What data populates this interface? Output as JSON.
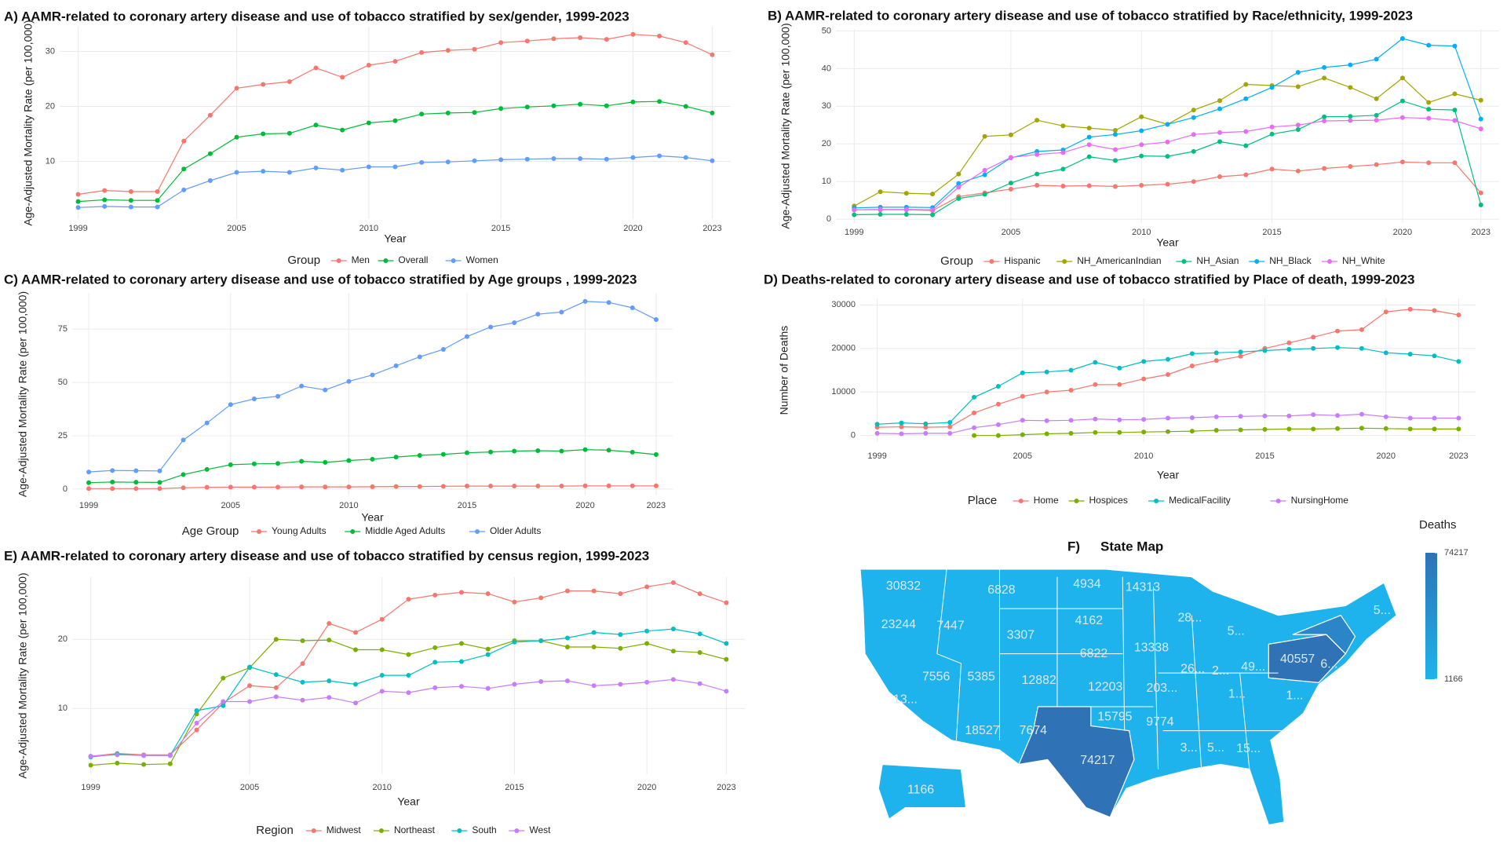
{
  "chart_data": [
    {
      "type": "line",
      "title": "A) AAMR-related to coronary artery disease and use of tobacco stratified by sex/gender, 1999-2023",
      "xlabel": "Year",
      "ylabel": "Age-Adjusted Mortality Rate (per 100,000)",
      "legend_title": "Group",
      "legend": "bottom",
      "grid": true,
      "x": [
        1999,
        2000,
        2001,
        2002,
        2003,
        2004,
        2005,
        2006,
        2007,
        2008,
        2009,
        2010,
        2011,
        2012,
        2013,
        2014,
        2015,
        2016,
        2017,
        2018,
        2019,
        2020,
        2021,
        2022,
        2023
      ],
      "xlim": [
        1998.3,
        2023.7
      ],
      "xticks": [
        1999,
        2005,
        2010,
        2015,
        2020,
        2023
      ],
      "ylim": [
        -0.5,
        34.5
      ],
      "yticks": [
        10,
        20,
        30
      ],
      "series": [
        {
          "name": "Men",
          "color": "#F8766D",
          "values": [
            4.0,
            4.7,
            4.5,
            4.5,
            13.7,
            18.4,
            23.3,
            24.0,
            24.5,
            27.0,
            25.3,
            27.5,
            28.2,
            29.8,
            30.2,
            30.4,
            31.6,
            31.9,
            32.3,
            32.5,
            32.2,
            33.1,
            32.8,
            31.6,
            29.4
          ]
        },
        {
          "name": "Overall",
          "color": "#00BA38",
          "values": [
            2.7,
            3.0,
            2.9,
            2.9,
            8.6,
            11.4,
            14.4,
            15.0,
            15.1,
            16.6,
            15.7,
            17.0,
            17.4,
            18.6,
            18.8,
            18.9,
            19.6,
            19.9,
            20.1,
            20.4,
            20.1,
            20.8,
            20.9,
            20.0,
            18.8
          ]
        },
        {
          "name": "Women",
          "color": "#619CFF",
          "values": [
            1.6,
            1.8,
            1.7,
            1.7,
            4.8,
            6.5,
            8.0,
            8.2,
            8.0,
            8.8,
            8.4,
            9.0,
            9.0,
            9.8,
            9.9,
            10.1,
            10.3,
            10.4,
            10.5,
            10.5,
            10.4,
            10.7,
            11.0,
            10.7,
            10.1
          ]
        }
      ]
    },
    {
      "type": "line",
      "title": "B) AAMR-related to coronary artery disease and use of tobacco stratified by Race/ethnicity, 1999-2023",
      "xlabel": "Year",
      "ylabel": "Age-Adjusted Mortality Rate (per 100,000)",
      "legend_title": "Group",
      "legend": "bottom",
      "grid": true,
      "x": [
        1999,
        2000,
        2001,
        2002,
        2003,
        2004,
        2005,
        2006,
        2007,
        2008,
        2009,
        2010,
        2011,
        2012,
        2013,
        2014,
        2015,
        2016,
        2017,
        2018,
        2019,
        2020,
        2021,
        2022,
        2023
      ],
      "xlim": [
        1998.3,
        2023.7
      ],
      "xticks": [
        1999,
        2005,
        2010,
        2015,
        2020,
        2023
      ],
      "ylim": [
        -1,
        50.5
      ],
      "yticks": [
        0,
        10,
        20,
        30,
        40,
        50
      ],
      "series": [
        {
          "name": "Hispanic",
          "color": "#F8766D",
          "values": [
            2.5,
            2.5,
            2.5,
            2.3,
            6.0,
            7.0,
            8.0,
            9.0,
            8.8,
            8.9,
            8.7,
            9.0,
            9.3,
            10.0,
            11.3,
            11.8,
            13.3,
            12.8,
            13.5,
            14.0,
            14.5,
            15.2,
            15.0,
            15.0,
            7.0
          ]
        },
        {
          "name": "NH_AmericanIndian",
          "color": "#A3A500",
          "values": [
            3.5,
            7.3,
            6.9,
            6.7,
            12.0,
            22.0,
            22.4,
            26.3,
            24.8,
            24.2,
            23.6,
            27.2,
            25.2,
            29.0,
            31.5,
            35.8,
            35.5,
            35.2,
            37.5,
            35.0,
            32.0,
            37.5,
            31.0,
            33.3,
            31.6
          ]
        },
        {
          "name": "NH_Asian",
          "color": "#00BF7D",
          "values": [
            1.2,
            1.3,
            1.3,
            1.2,
            5.5,
            6.6,
            9.6,
            12.0,
            13.3,
            16.6,
            15.6,
            16.8,
            16.7,
            18.0,
            20.6,
            19.5,
            22.6,
            23.8,
            27.2,
            27.3,
            27.6,
            31.4,
            29.2,
            29.0,
            3.8
          ]
        },
        {
          "name": "NH_Black",
          "color": "#00B0F6",
          "values": [
            3.0,
            3.2,
            3.2,
            3.1,
            9.5,
            11.8,
            16.3,
            18.0,
            18.4,
            21.8,
            22.5,
            23.5,
            25.2,
            27.0,
            29.3,
            32.0,
            35.0,
            39.0,
            40.3,
            41.0,
            42.5,
            48.0,
            46.2,
            46.0,
            26.6
          ]
        },
        {
          "name": "NH_White",
          "color": "#E76BF3",
          "values": [
            2.5,
            2.6,
            2.6,
            2.5,
            8.5,
            13.0,
            16.4,
            17.2,
            17.7,
            19.8,
            18.5,
            19.8,
            20.5,
            22.5,
            23.0,
            23.3,
            24.5,
            25.0,
            26.1,
            26.2,
            26.3,
            27.0,
            26.8,
            26.2,
            24.0
          ]
        }
      ]
    },
    {
      "type": "line",
      "title": "C)  AAMR-related to coronary artery disease and use of tobacco stratified by Age groups , 1999-2023",
      "xlabel": "Year",
      "ylabel": "Age-Adjusted Mortality Rate (per 100,000)",
      "legend_title": "Age Group",
      "legend": "bottom",
      "grid": true,
      "x": [
        1999,
        2000,
        2001,
        2002,
        2003,
        2004,
        2005,
        2006,
        2007,
        2008,
        2009,
        2010,
        2011,
        2012,
        2013,
        2014,
        2015,
        2016,
        2017,
        2018,
        2019,
        2020,
        2021,
        2022,
        2023
      ],
      "xlim": [
        1998.3,
        2023.7
      ],
      "xticks": [
        1999,
        2005,
        2010,
        2015,
        2020,
        2023
      ],
      "ylim": [
        -3,
        92
      ],
      "yticks": [
        0,
        25,
        50,
        75
      ],
      "series": [
        {
          "name": "Young Adults",
          "color": "#F8766D",
          "values": [
            0.2,
            0.2,
            0.2,
            0.2,
            0.6,
            0.8,
            0.9,
            0.9,
            0.9,
            1.0,
            1.0,
            1.0,
            1.1,
            1.2,
            1.2,
            1.3,
            1.4,
            1.4,
            1.4,
            1.4,
            1.4,
            1.5,
            1.5,
            1.5,
            1.5
          ]
        },
        {
          "name": "Middle Aged Adults",
          "color": "#00BA38",
          "values": [
            3.0,
            3.3,
            3.2,
            3.1,
            6.8,
            9.2,
            11.4,
            11.8,
            12.0,
            13.0,
            12.5,
            13.4,
            14.0,
            15.0,
            15.8,
            16.3,
            17.0,
            17.4,
            17.8,
            18.0,
            17.8,
            18.5,
            18.2,
            17.3,
            16.2
          ]
        },
        {
          "name": "Older Adults",
          "color": "#619CFF",
          "values": [
            8.0,
            8.7,
            8.6,
            8.5,
            23.0,
            31.0,
            39.6,
            42.3,
            43.5,
            48.3,
            46.5,
            50.5,
            53.5,
            57.8,
            62.0,
            65.5,
            71.5,
            76.0,
            78.0,
            82.0,
            83.0,
            88.0,
            87.5,
            85.0,
            79.5
          ]
        }
      ]
    },
    {
      "type": "line",
      "title": "D) Deaths-related to coronary artery disease and use of tobacco stratified by Place of death, 1999-2023",
      "xlabel": "Year",
      "ylabel": "Number of Deaths",
      "legend_title": "Place",
      "legend": "bottom",
      "grid": true,
      "x": [
        1999,
        2000,
        2001,
        2002,
        2003,
        2004,
        2005,
        2006,
        2007,
        2008,
        2009,
        2010,
        2011,
        2012,
        2013,
        2014,
        2015,
        2016,
        2017,
        2018,
        2019,
        2020,
        2021,
        2022,
        2023
      ],
      "xlim": [
        1998.3,
        2023.7
      ],
      "xticks": [
        1999,
        2005,
        2010,
        2015,
        2020,
        2023
      ],
      "ylim": [
        -1500,
        31500
      ],
      "yticks": [
        0,
        10000,
        20000,
        30000
      ],
      "series": [
        {
          "name": "Home",
          "color": "#F8766D",
          "values": [
            1900,
            2000,
            1900,
            2000,
            5200,
            7200,
            9000,
            10000,
            10400,
            11700,
            11700,
            13000,
            14000,
            16000,
            17200,
            18200,
            20000,
            21300,
            22600,
            24000,
            24300,
            28400,
            29000,
            28700,
            27700
          ]
        },
        {
          "name": "Hospices",
          "color": "#7CAE00",
          "values": [
            null,
            null,
            null,
            null,
            0,
            0,
            200,
            400,
            500,
            700,
            700,
            800,
            900,
            1000,
            1200,
            1300,
            1400,
            1500,
            1500,
            1600,
            1700,
            1600,
            1500,
            1500,
            1500
          ]
        },
        {
          "name": "MedicalFacility",
          "color": "#00BFC4",
          "values": [
            2600,
            2900,
            2700,
            3000,
            8800,
            11300,
            14400,
            14600,
            15000,
            16800,
            15500,
            17000,
            17500,
            18800,
            19000,
            19200,
            19500,
            19800,
            20000,
            20200,
            20000,
            19000,
            18700,
            18300,
            17000
          ]
        },
        {
          "name": "NursingHome",
          "color": "#C77CFF",
          "values": [
            500,
            400,
            500,
            500,
            1800,
            2500,
            3500,
            3400,
            3500,
            3800,
            3600,
            3700,
            4000,
            4100,
            4300,
            4400,
            4500,
            4500,
            4800,
            4600,
            4900,
            4300,
            4000,
            4000,
            4000
          ]
        }
      ]
    },
    {
      "type": "line",
      "title": "E) AAMR-related to coronary artery disease and use of tobacco stratified by census region, 1999-2023",
      "xlabel": "Year",
      "ylabel": "Age-Adjusted Mortality Rate (per 100,000)",
      "legend_title": "Region",
      "legend": "bottom",
      "grid": true,
      "x": [
        1999,
        2000,
        2001,
        2002,
        2003,
        2004,
        2005,
        2006,
        2007,
        2008,
        2009,
        2010,
        2011,
        2012,
        2013,
        2014,
        2015,
        2016,
        2017,
        2018,
        2019,
        2020,
        2021,
        2022,
        2023
      ],
      "xlim": [
        1998.3,
        2023.7
      ],
      "xticks": [
        1999,
        2005,
        2010,
        2015,
        2020,
        2023
      ],
      "ylim": [
        0.5,
        29
      ],
      "yticks": [
        10,
        20
      ],
      "series": [
        {
          "name": "Midwest",
          "color": "#F8766D",
          "values": [
            3.1,
            3.5,
            3.3,
            3.3,
            6.9,
            10.8,
            13.3,
            13.0,
            16.5,
            22.3,
            21.0,
            22.9,
            25.8,
            26.4,
            26.8,
            26.6,
            25.4,
            26.0,
            27.0,
            27.0,
            26.6,
            27.6,
            28.2,
            26.6,
            25.3
          ]
        },
        {
          "name": "Northeast",
          "color": "#7CAE00",
          "values": [
            1.8,
            2.1,
            1.9,
            2.0,
            9.2,
            14.4,
            15.9,
            20.0,
            19.8,
            19.9,
            18.5,
            18.5,
            17.8,
            18.8,
            19.4,
            18.6,
            19.8,
            19.8,
            18.9,
            18.9,
            18.7,
            19.4,
            18.3,
            18.1,
            17.1
          ]
        },
        {
          "name": "South",
          "color": "#00BFC4",
          "values": [
            3.0,
            3.4,
            3.2,
            3.2,
            9.7,
            10.4,
            16.0,
            14.9,
            13.8,
            14.0,
            13.5,
            14.8,
            14.8,
            16.7,
            16.8,
            17.8,
            19.6,
            19.8,
            20.2,
            21.0,
            20.7,
            21.2,
            21.5,
            20.8,
            19.4
          ]
        },
        {
          "name": "West",
          "color": "#C77CFF",
          "values": [
            3.1,
            3.3,
            3.2,
            3.2,
            7.9,
            11.0,
            11.0,
            11.7,
            11.2,
            11.6,
            10.8,
            12.5,
            12.3,
            13.0,
            13.2,
            12.9,
            13.5,
            13.9,
            14.0,
            13.3,
            13.5,
            13.8,
            14.2,
            13.6,
            12.5
          ]
        }
      ]
    },
    {
      "type": "map",
      "panel_label": "F)",
      "title": "State Map",
      "colorbar_title": "Deaths",
      "colorbar_ticks": [
        1166,
        74217
      ],
      "colorbar_colors": [
        "#1eb3ec",
        "#2f72b5"
      ],
      "state_labels": [
        "30832",
        "6828",
        "4934",
        "14313",
        "23244",
        "7447",
        "3307",
        "4162",
        "28...",
        "5...",
        "5...",
        "6...",
        "6822",
        "13338",
        "7556",
        "5385",
        "12882",
        "12203",
        "26...",
        "2...",
        "49...",
        "40557",
        "203...",
        "1...",
        "1...",
        "13...",
        "18527",
        "7674",
        "15795",
        "9774",
        "3...",
        "5...",
        "15...",
        "74217",
        "1166"
      ]
    }
  ]
}
